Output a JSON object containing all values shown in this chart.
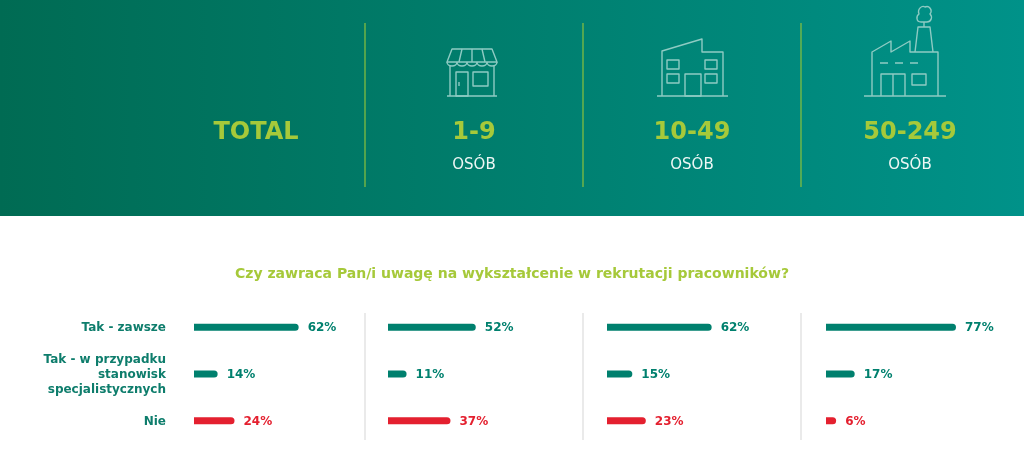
{
  "chart_data": [
    {
      "type": "bar",
      "orientation": "horizontal",
      "title": "TOTAL",
      "annotations": [
        "Czy zawraca Pan/i uwagę na wykształcenie w rekrutacji pracowników?"
      ],
      "categories": [
        "Tak - zawsze",
        "Tak - w przypadku stanowisk specjalistycznych",
        "Nie"
      ],
      "values": [
        62,
        14,
        24
      ],
      "colors": [
        "#00806e",
        "#00806e",
        "#e4202f"
      ],
      "value_labels": [
        "62%",
        "14%",
        "24%"
      ],
      "tick_labels": "y"
    },
    {
      "type": "bar",
      "orientation": "horizontal",
      "title": "1-9",
      "subtitle": "OSÓB",
      "categories": [
        null,
        null,
        null
      ],
      "values": [
        52,
        11,
        37
      ],
      "colors": [
        "#00806e",
        "#00806e",
        "#e4202f"
      ],
      "value_labels": [
        "52%",
        "11%",
        "37%"
      ],
      "tick_labels": false
    },
    {
      "type": "bar",
      "orientation": "horizontal",
      "title": "10-49",
      "subtitle": "OSÓB",
      "categories": [
        null,
        null,
        null
      ],
      "values": [
        62,
        15,
        23
      ],
      "colors": [
        "#00806e",
        "#00806e",
        "#e4202f"
      ],
      "value_labels": [
        "62%",
        "15%",
        "23%"
      ],
      "tick_labels": false
    },
    {
      "type": "bar",
      "orientation": "horizontal",
      "title": "50-249",
      "subtitle": "OSÓB",
      "categories": [
        null,
        null,
        null
      ],
      "values": [
        77,
        17,
        6
      ],
      "colors": [
        "#00806e",
        "#00806e",
        "#e4202f"
      ],
      "value_labels": [
        "77%",
        "17%",
        "6%"
      ],
      "tick_labels": false
    }
  ]
}
